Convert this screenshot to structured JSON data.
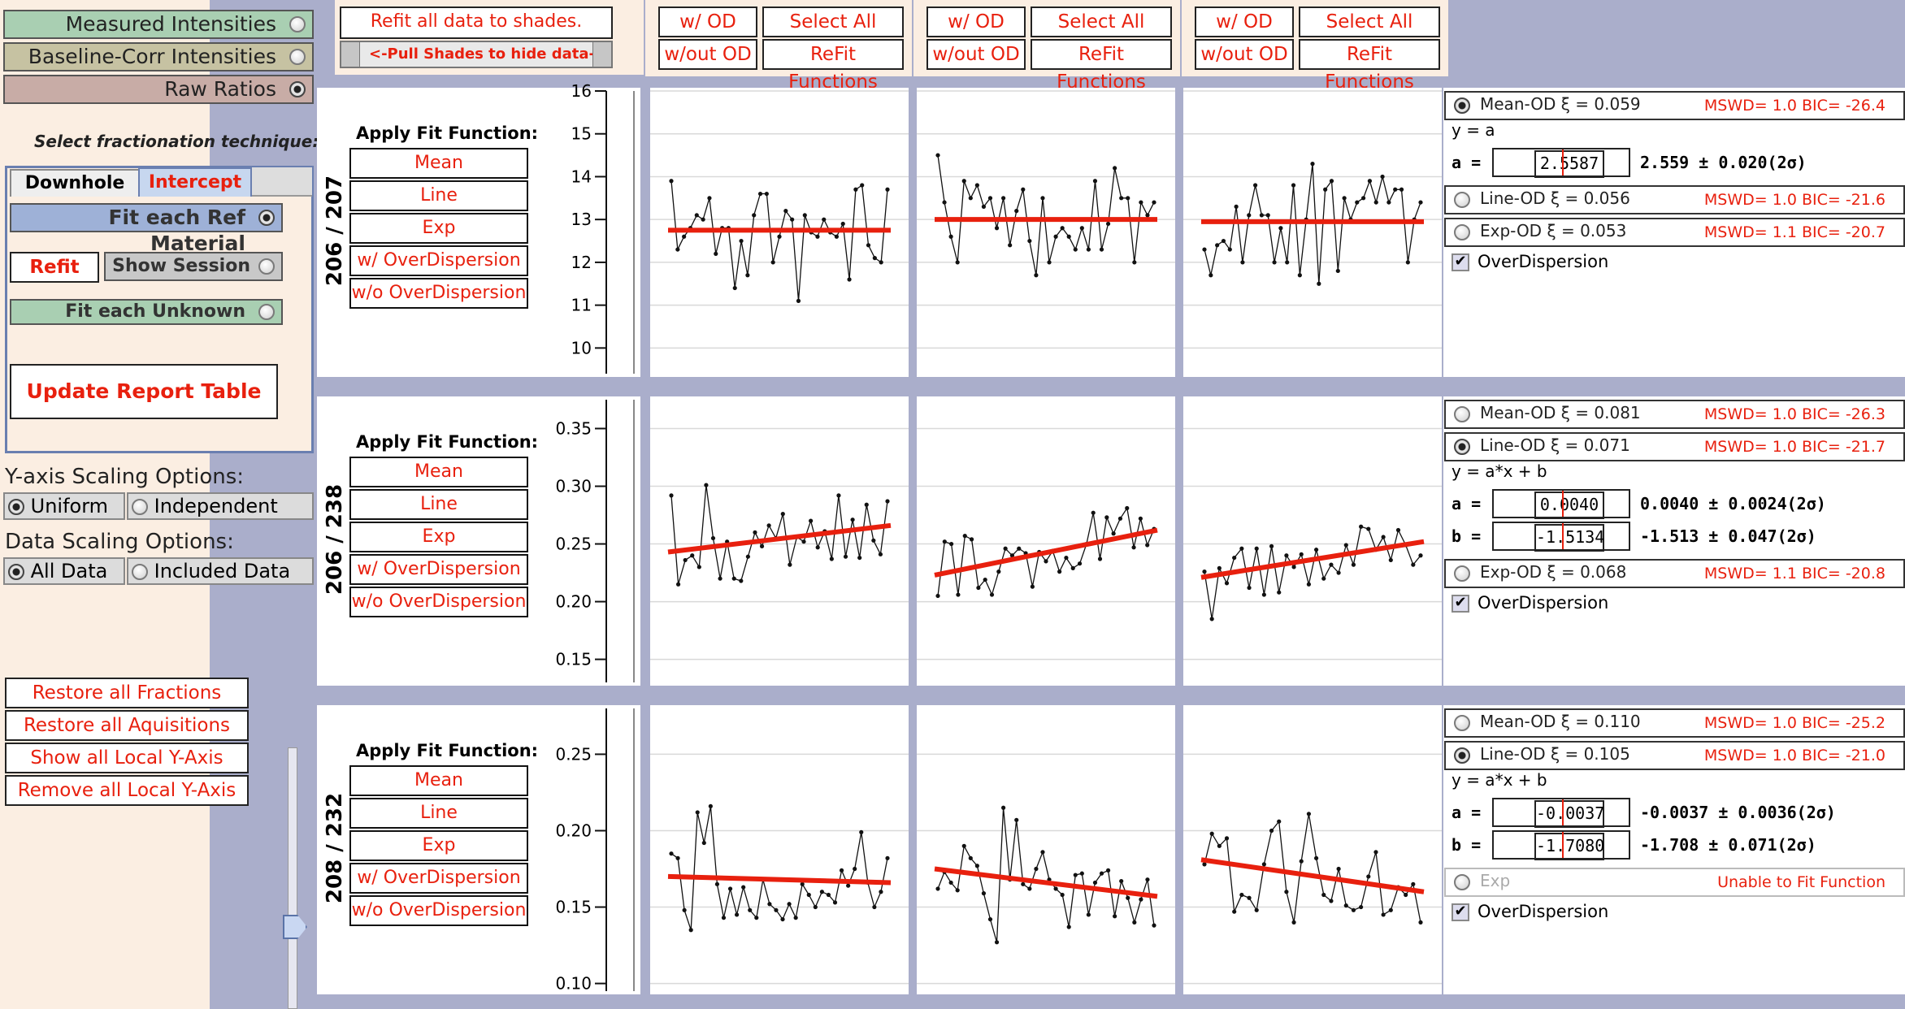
{
  "left": {
    "measured_label": "Measured Intensities",
    "baseline_label": "Baseline-Corr Intensities",
    "raw_label": "Raw Ratios",
    "select_technique": "Select fractionation technique:",
    "tab_downhole": "Downhole",
    "tab_intercept": "Intercept",
    "fit_ref": "Fit each Ref Material",
    "refit": "Refit",
    "show_session": "Show Session",
    "fit_unknown": "Fit each Unknown",
    "update_report": "Update Report Table",
    "y_axis_heading": "Y-axis Scaling Options:",
    "uniform": "Uniform",
    "independent": "Independent",
    "data_heading": "Data Scaling Options:",
    "all_data": "All Data",
    "included_data": "Included Data",
    "restore_fractions": "Restore all Fractions",
    "restore_aquisitions": "Restore all Aquisitions",
    "show_local": "Show all Local Y-Axis",
    "remove_local": "Remove all Local Y-Axis"
  },
  "top": {
    "refit_all": "Refit all data to shades.",
    "pull_shades": "<-Pull Shades to hide data->",
    "with_od": "w/ OD",
    "without_od": "w/out OD",
    "select_all": "Select All",
    "refit_functions": "ReFit Functions"
  },
  "apply_fit": {
    "heading": "Apply Fit Function:",
    "mean": "Mean",
    "line": "Line",
    "exp": "Exp",
    "with_od": "w/ OverDispersion",
    "without_od": "w/o OverDispersion"
  },
  "rows": [
    {
      "ratio": "206 / 207",
      "ticks": [
        "10",
        "11",
        "12",
        "13",
        "14",
        "15",
        "16"
      ],
      "functions": [
        {
          "name": "Mean-OD ξ = 0.059",
          "fit": "MSWD= 1.0 BIC= -26.4",
          "selected": true
        },
        {
          "name": "Line-OD ξ = 0.056",
          "fit": "MSWD= 1.0 BIC= -21.6",
          "selected": false
        },
        {
          "name": "Exp-OD ξ = 0.053",
          "fit": "MSWD= 1.1 BIC= -20.7",
          "selected": false
        }
      ],
      "equation": "y = a",
      "params": [
        {
          "name": "a =",
          "value": "2.5587",
          "result": "2.559 ± 0.020(2σ)"
        }
      ],
      "overdispersion": "OverDispersion"
    },
    {
      "ratio": "206 / 238",
      "ticks": [
        "0.15",
        "0.20",
        "0.25",
        "0.30",
        "0.35"
      ],
      "functions": [
        {
          "name": "Mean-OD ξ = 0.081",
          "fit": "MSWD= 1.0 BIC= -26.3",
          "selected": false
        },
        {
          "name": "Line-OD ξ = 0.071",
          "fit": "MSWD= 1.0 BIC= -21.7",
          "selected": true
        },
        {
          "name": "Exp-OD ξ = 0.068",
          "fit": "MSWD= 1.1 BIC= -20.8",
          "selected": false
        }
      ],
      "equation": "y = a*x + b",
      "params": [
        {
          "name": "a =",
          "value": "0.0040",
          "result": "0.0040 ± 0.0024(2σ)"
        },
        {
          "name": "b =",
          "value": "-1.5134",
          "result": "-1.513 ± 0.047(2σ)"
        }
      ],
      "overdispersion": "OverDispersion"
    },
    {
      "ratio": "208 / 232",
      "ticks": [
        "0.10",
        "0.15",
        "0.20",
        "0.25"
      ],
      "functions": [
        {
          "name": "Mean-OD ξ = 0.110",
          "fit": "MSWD= 1.0 BIC= -25.2",
          "selected": false
        },
        {
          "name": "Line-OD ξ = 0.105",
          "fit": "MSWD= 1.0 BIC= -21.0",
          "selected": true
        },
        {
          "name": "Exp",
          "fit": "Unable to Fit Function",
          "selected": false
        }
      ],
      "equation": "y = a*x + b",
      "params": [
        {
          "name": "a =",
          "value": "-0.0037",
          "result": "-0.0037 ± 0.0036(2σ)"
        },
        {
          "name": "b =",
          "value": "-1.7080",
          "result": "-1.708 ± 0.071(2σ)"
        }
      ],
      "overdispersion": "OverDispersion"
    }
  ],
  "colors": {
    "accent": "#e8200e",
    "panel": "#fbeee2",
    "measured": "#a9cfb2",
    "baseline": "#c6c2a2",
    "raw": "#c8aca6",
    "divider": "#aaaecb"
  },
  "chart_data": [
    {
      "type": "scatter",
      "ylabel": "206 / 207",
      "ylim": [
        9.4,
        16.0
      ],
      "series": [
        {
          "values": [
            13.9,
            12.3,
            12.6,
            12.8,
            13.1,
            13.0,
            13.5,
            12.2,
            12.8,
            12.8,
            11.4,
            12.5,
            11.7,
            13.1,
            13.6,
            13.6,
            12.0,
            12.6,
            13.2,
            13.0,
            11.1,
            13.1,
            12.7,
            12.6,
            13.0,
            12.7,
            12.6,
            12.9,
            11.6,
            13.7,
            13.8,
            12.4,
            12.1,
            12.0,
            13.7
          ],
          "fit": [
            12.75,
            12.75
          ]
        },
        {
          "values": [
            14.5,
            13.4,
            12.6,
            12.0,
            13.9,
            13.5,
            13.8,
            13.3,
            13.5,
            12.8,
            13.5,
            12.4,
            13.2,
            13.7,
            12.5,
            11.7,
            13.5,
            12.0,
            12.6,
            12.8,
            12.6,
            12.3,
            12.8,
            12.3,
            13.9,
            12.3,
            12.9,
            14.2,
            13.5,
            13.5,
            12.0,
            13.4,
            13.1,
            13.4
          ],
          "fit": [
            13.0,
            13.0
          ]
        },
        {
          "values": [
            12.3,
            11.7,
            12.4,
            12.5,
            12.3,
            13.3,
            12.0,
            13.1,
            13.8,
            13.1,
            13.1,
            12.0,
            12.8,
            12.0,
            13.8,
            11.7,
            13.0,
            14.3,
            11.5,
            13.7,
            13.9,
            11.8,
            13.5,
            13.0,
            13.4,
            13.5,
            13.9,
            13.4,
            14.0,
            13.4,
            13.7,
            13.7,
            12.0,
            13.0,
            13.4
          ],
          "fit": [
            12.95,
            12.95
          ]
        }
      ]
    },
    {
      "type": "scatter",
      "ylabel": "206 / 238",
      "ylim": [
        0.13,
        0.375
      ],
      "series": [
        {
          "values": [
            0.292,
            0.215,
            0.236,
            0.24,
            0.23,
            0.301,
            0.255,
            0.22,
            0.252,
            0.22,
            0.218,
            0.239,
            0.26,
            0.248,
            0.266,
            0.255,
            0.276,
            0.232,
            0.256,
            0.252,
            0.27,
            0.247,
            0.261,
            0.237,
            0.292,
            0.239,
            0.271,
            0.238,
            0.284,
            0.253,
            0.241,
            0.287
          ],
          "fit": [
            0.243,
            0.266
          ]
        },
        {
          "values": [
            0.205,
            0.252,
            0.25,
            0.206,
            0.257,
            0.254,
            0.212,
            0.219,
            0.206,
            0.226,
            0.246,
            0.24,
            0.246,
            0.242,
            0.213,
            0.243,
            0.235,
            0.244,
            0.226,
            0.238,
            0.229,
            0.233,
            0.25,
            0.277,
            0.237,
            0.273,
            0.259,
            0.272,
            0.281,
            0.247,
            0.272,
            0.249,
            0.263
          ],
          "fit": [
            0.223,
            0.262
          ]
        },
        {
          "values": [
            0.226,
            0.185,
            0.229,
            0.216,
            0.238,
            0.246,
            0.212,
            0.246,
            0.206,
            0.248,
            0.208,
            0.24,
            0.23,
            0.241,
            0.215,
            0.245,
            0.22,
            0.232,
            0.225,
            0.249,
            0.232,
            0.265,
            0.263,
            0.245,
            0.256,
            0.236,
            0.262,
            0.249,
            0.232,
            0.24
          ],
          "fit": [
            0.221,
            0.252
          ]
        }
      ]
    },
    {
      "type": "scatter",
      "ylabel": "208 / 232",
      "ylim": [
        0.095,
        0.28
      ],
      "series": [
        {
          "values": [
            0.185,
            0.182,
            0.148,
            0.135,
            0.212,
            0.192,
            0.216,
            0.165,
            0.143,
            0.162,
            0.145,
            0.163,
            0.148,
            0.143,
            0.168,
            0.152,
            0.148,
            0.142,
            0.152,
            0.143,
            0.165,
            0.158,
            0.15,
            0.16,
            0.158,
            0.153,
            0.174,
            0.164,
            0.175,
            0.199,
            0.166,
            0.15,
            0.16,
            0.182
          ],
          "fit": [
            0.17,
            0.166
          ]
        },
        {
          "values": [
            0.162,
            0.173,
            0.166,
            0.161,
            0.19,
            0.182,
            0.177,
            0.159,
            0.142,
            0.127,
            0.215,
            0.168,
            0.207,
            0.165,
            0.162,
            0.175,
            0.186,
            0.168,
            0.162,
            0.158,
            0.137,
            0.171,
            0.172,
            0.145,
            0.166,
            0.172,
            0.174,
            0.144,
            0.167,
            0.156,
            0.14,
            0.155,
            0.168,
            0.138
          ],
          "fit": [
            0.175,
            0.157
          ]
        },
        {
          "values": [
            0.178,
            0.198,
            0.19,
            0.195,
            0.147,
            0.158,
            0.156,
            0.148,
            0.178,
            0.2,
            0.206,
            0.16,
            0.14,
            0.18,
            0.211,
            0.182,
            0.158,
            0.154,
            0.175,
            0.151,
            0.148,
            0.15,
            0.17,
            0.186,
            0.145,
            0.148,
            0.163,
            0.158,
            0.165,
            0.14
          ],
          "fit": [
            0.181,
            0.16
          ]
        }
      ]
    }
  ]
}
